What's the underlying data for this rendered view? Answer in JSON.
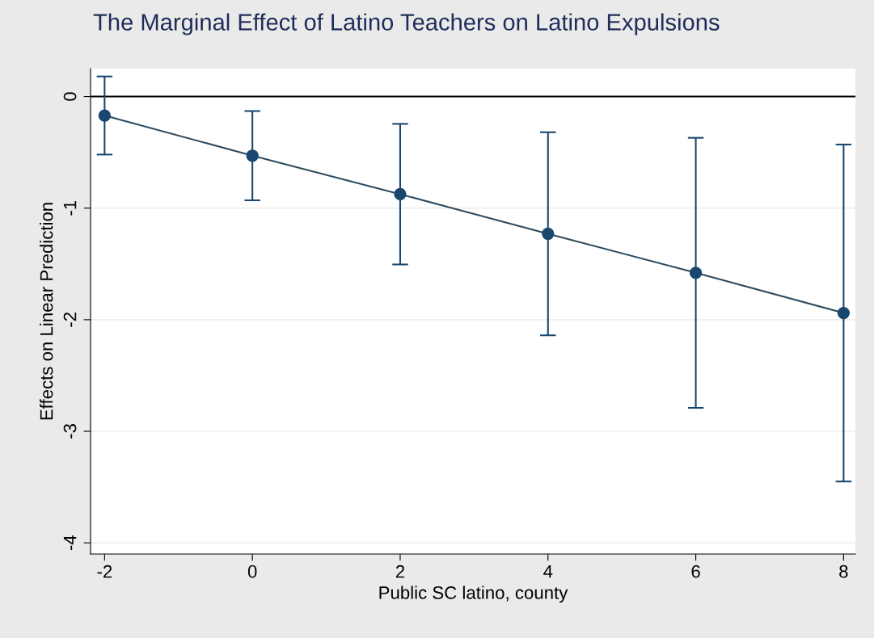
{
  "chart_data": {
    "type": "line",
    "title": "The Marginal Effect of Latino Teachers on Latino Expulsions",
    "xlabel": "Public SC latino, county",
    "ylabel": "Effects on Linear Prediction",
    "x": [
      -2,
      0,
      2,
      4,
      6,
      8
    ],
    "series": [
      {
        "color": "#1a476f",
        "values": [
          -0.17,
          -0.53,
          -0.875,
          -1.23,
          -1.58,
          -1.94
        ],
        "errors": [
          0.35,
          0.4,
          0.63,
          0.91,
          1.21,
          1.51
        ]
      }
    ],
    "xlim": [
      -2.19,
      8.16
    ],
    "ylim": [
      -4.1,
      0.25
    ],
    "xticks": [
      {
        "value": -2,
        "label": "-2"
      },
      0,
      2,
      4,
      6,
      8
    ],
    "yticks": [
      {
        "value": -4,
        "label": "-4"
      },
      {
        "value": -3,
        "label": "-3"
      },
      {
        "value": -2,
        "label": "-2"
      },
      {
        "value": -1,
        "label": "-1"
      },
      0
    ],
    "ref_lines": [
      {
        "axis": "y",
        "value": 0,
        "color": "#000000"
      }
    ],
    "grid": "y",
    "marker": "circle",
    "line_style": "solid"
  }
}
